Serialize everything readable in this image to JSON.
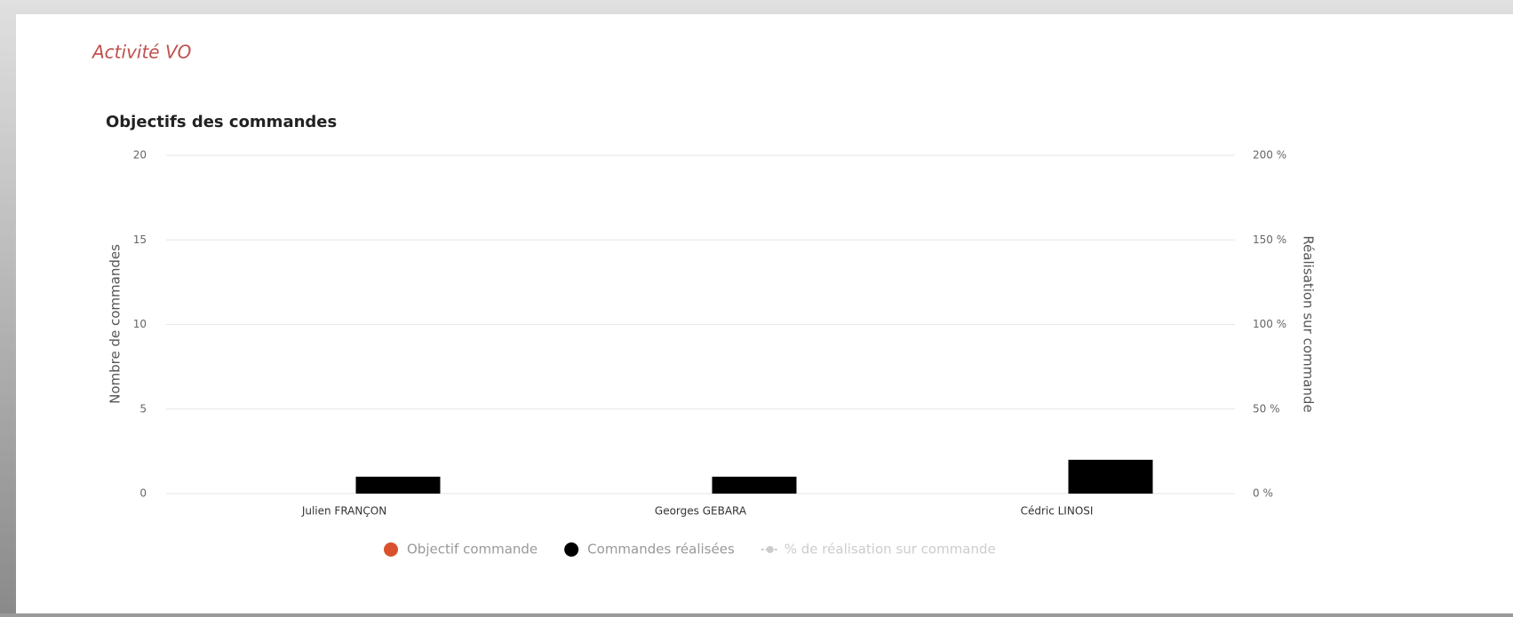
{
  "page_title": "Activité VO",
  "chart_data": {
    "type": "bar",
    "title": "Objectifs des commandes",
    "categories": [
      "Julien FRANÇON",
      "Georges GEBARA",
      "Cédric LINOSI"
    ],
    "series": [
      {
        "name": "Objectif commande",
        "color": "#d9512c",
        "type": "bar",
        "values": [
          0,
          0,
          0
        ]
      },
      {
        "name": "Commandes réalisées",
        "color": "#000000",
        "type": "bar",
        "values": [
          1,
          1,
          2
        ]
      },
      {
        "name": "% de réalisation sur commande",
        "color": "#cccccc",
        "type": "line",
        "axis": "y2",
        "hidden": true,
        "values": [
          null,
          null,
          null
        ]
      }
    ],
    "ylabel": "Nombre de commandes",
    "y2label": "Réalisation sur commande",
    "ylim": [
      0,
      20
    ],
    "yticks": [
      0,
      5,
      10,
      15,
      20
    ],
    "y2lim": [
      0,
      200
    ],
    "y2ticks": [
      {
        "value": 0,
        "label": "0 %"
      },
      {
        "value": 50,
        "label": "50 %"
      },
      {
        "value": 100,
        "label": "100 %"
      },
      {
        "value": 150,
        "label": "150 %"
      },
      {
        "value": 200,
        "label": "200 %"
      }
    ],
    "grid": true,
    "legend": "bottom"
  }
}
